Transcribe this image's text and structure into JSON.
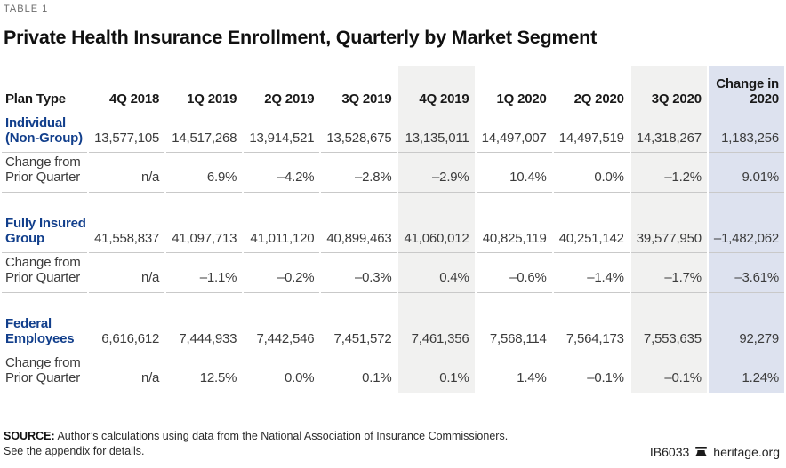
{
  "meta": {
    "kicker": "TABLE 1",
    "title": "Private Health Insurance Enrollment, Quarterly by Market Segment"
  },
  "colors": {
    "section_label_blue": "#123f8c",
    "shade_gray": "#f1f1f0",
    "shade_blue": "#dde2ef",
    "header_rule": "#484848",
    "row_rule": "#c9c9c9"
  },
  "table": {
    "columns": [
      "Plan Type",
      "4Q 2018",
      "1Q 2019",
      "2Q 2019",
      "3Q 2019",
      "4Q 2019",
      "1Q 2020",
      "2Q 2020",
      "3Q 2020",
      "Change in 2020"
    ],
    "shaded_gray_columns": [
      "4Q 2019",
      "3Q 2020"
    ],
    "shaded_blue_columns": [
      "Change in 2020"
    ],
    "change_label_lines": [
      "Change from",
      "Prior Quarter"
    ],
    "sections": [
      {
        "label": "Individual (Non-Group)",
        "label_lines": [
          "Individual",
          "(Non-Group)"
        ],
        "values": [
          "13,577,105",
          "14,517,268",
          "13,914,521",
          "13,528,675",
          "13,135,011",
          "14,497,007",
          "14,497,519",
          "14,318,267",
          "1,183,256"
        ],
        "changes": [
          "n/a",
          "6.9%",
          "–4.2%",
          "–2.8%",
          "–2.9%",
          "10.4%",
          "0.0%",
          "–1.2%",
          "9.01%"
        ]
      },
      {
        "label": "Fully Insured Group",
        "label_lines": [
          "Fully Insured",
          "Group"
        ],
        "values": [
          "41,558,837",
          "41,097,713",
          "41,011,120",
          "40,899,463",
          "41,060,012",
          "40,825,119",
          "40,251,142",
          "39,577,950",
          "–1,482,062"
        ],
        "changes": [
          "n/a",
          "–1.1%",
          "–0.2%",
          "–0.3%",
          "0.4%",
          "–0.6%",
          "–1.4%",
          "–1.7%",
          "–3.61%"
        ]
      },
      {
        "label": "Federal Employees",
        "label_lines": [
          "Federal",
          "Employees"
        ],
        "values": [
          "6,616,612",
          "7,444,933",
          "7,442,546",
          "7,451,572",
          "7,461,356",
          "7,568,114",
          "7,564,173",
          "7,553,635",
          "92,279"
        ],
        "changes": [
          "n/a",
          "12.5%",
          "0.0%",
          "0.1%",
          "0.1%",
          "1.4%",
          "–0.1%",
          "–0.1%",
          "1.24%"
        ]
      }
    ]
  },
  "chart_data": {
    "type": "table",
    "title": "Private Health Insurance Enrollment, Quarterly by Market Segment",
    "columns": [
      "Plan Type",
      "4Q 2018",
      "1Q 2019",
      "2Q 2019",
      "3Q 2019",
      "4Q 2019",
      "1Q 2020",
      "2Q 2020",
      "3Q 2020",
      "Change in 2020"
    ],
    "series": [
      {
        "name": "Individual (Non-Group) enrollment",
        "values": [
          13577105,
          14517268,
          13914521,
          13528675,
          13135011,
          14497007,
          14497519,
          14318267
        ],
        "change_in_2020": 1183256,
        "pct_change_prior_quarter": [
          null,
          6.9,
          -4.2,
          -2.8,
          -2.9,
          10.4,
          0.0,
          -1.2
        ],
        "pct_change_in_2020": 9.01
      },
      {
        "name": "Fully Insured Group enrollment",
        "values": [
          41558837,
          41097713,
          41011120,
          40899463,
          41060012,
          40825119,
          40251142,
          39577950
        ],
        "change_in_2020": -1482062,
        "pct_change_prior_quarter": [
          null,
          -1.1,
          -0.2,
          -0.3,
          0.4,
          -0.6,
          -1.4,
          -1.7
        ],
        "pct_change_in_2020": -3.61
      },
      {
        "name": "Federal Employees enrollment",
        "values": [
          6616612,
          7444933,
          7442546,
          7451572,
          7461356,
          7568114,
          7564173,
          7553635
        ],
        "change_in_2020": 92279,
        "pct_change_prior_quarter": [
          null,
          12.5,
          0.0,
          0.1,
          0.1,
          1.4,
          -0.1,
          -0.1
        ],
        "pct_change_in_2020": 1.24
      }
    ],
    "x_categories": [
      "4Q 2018",
      "1Q 2019",
      "2Q 2019",
      "3Q 2019",
      "4Q 2019",
      "1Q 2020",
      "2Q 2020",
      "3Q 2020"
    ]
  },
  "footer": {
    "source_bold": "SOURCE:",
    "source_rest": " Author’s calculations using data from the National Association of Insurance Commissioners.",
    "appendix": "See the appendix for details.",
    "doc_id": "IB6033",
    "site": "heritage.org"
  }
}
